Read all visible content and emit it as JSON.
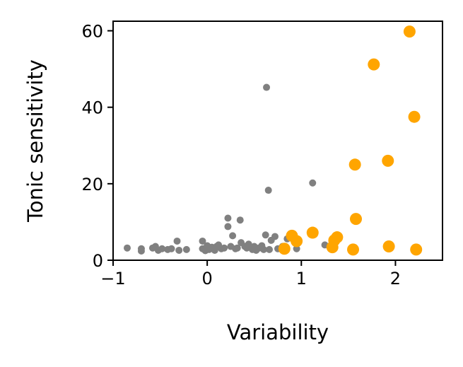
{
  "chart_data": {
    "type": "scatter",
    "xlabel": "Variability",
    "ylabel": "Tonic sensitivity",
    "xlim": [
      -1,
      2.5
    ],
    "ylim": [
      0,
      62.5
    ],
    "xticks": [
      -1,
      0,
      1,
      2
    ],
    "xtick_labels": [
      "−1",
      "0",
      "1",
      "2"
    ],
    "yticks": [
      0,
      20,
      40,
      60
    ],
    "ytick_labels": [
      "0",
      "20",
      "40",
      "60"
    ],
    "grid": false,
    "series": [
      {
        "color": "#808080",
        "marker_size": "small",
        "points": [
          [
            -0.85,
            3.2
          ],
          [
            -0.7,
            3.0
          ],
          [
            -0.7,
            2.4
          ],
          [
            -0.58,
            3.2
          ],
          [
            -0.55,
            3.6
          ],
          [
            -0.52,
            2.6
          ],
          [
            -0.48,
            3.0
          ],
          [
            -0.42,
            2.8
          ],
          [
            -0.38,
            3.0
          ],
          [
            -0.32,
            5.0
          ],
          [
            -0.3,
            2.6
          ],
          [
            -0.22,
            2.8
          ],
          [
            -0.05,
            5.0
          ],
          [
            -0.05,
            3.0
          ],
          [
            -0.02,
            2.5
          ],
          [
            0.0,
            3.8
          ],
          [
            0.02,
            2.8
          ],
          [
            0.05,
            3.4
          ],
          [
            0.08,
            2.6
          ],
          [
            0.1,
            3.6
          ],
          [
            0.12,
            4.0
          ],
          [
            0.15,
            3.0
          ],
          [
            0.18,
            3.2
          ],
          [
            0.22,
            11.0
          ],
          [
            0.22,
            8.8
          ],
          [
            0.25,
            3.6
          ],
          [
            0.27,
            6.4
          ],
          [
            0.3,
            3.0
          ],
          [
            0.32,
            3.2
          ],
          [
            0.35,
            10.5
          ],
          [
            0.36,
            4.6
          ],
          [
            0.4,
            3.6
          ],
          [
            0.42,
            3.2
          ],
          [
            0.44,
            4.2
          ],
          [
            0.48,
            2.8
          ],
          [
            0.5,
            3.6
          ],
          [
            0.52,
            2.6
          ],
          [
            0.55,
            3.2
          ],
          [
            0.58,
            3.8
          ],
          [
            0.6,
            2.8
          ],
          [
            0.62,
            6.6
          ],
          [
            0.63,
            45.2
          ],
          [
            0.65,
            18.3
          ],
          [
            0.66,
            2.8
          ],
          [
            0.68,
            5.2
          ],
          [
            0.72,
            6.2
          ],
          [
            0.75,
            3.0
          ],
          [
            0.8,
            3.6
          ],
          [
            0.85,
            5.6
          ],
          [
            0.95,
            3.0
          ],
          [
            1.12,
            20.2
          ],
          [
            1.25,
            4.0
          ]
        ]
      },
      {
        "color": "#ffa500",
        "marker_size": "large",
        "points": [
          [
            0.82,
            3.0
          ],
          [
            0.9,
            6.4
          ],
          [
            0.95,
            5.0
          ],
          [
            1.12,
            7.2
          ],
          [
            1.33,
            3.4
          ],
          [
            1.35,
            5.2
          ],
          [
            1.38,
            6.0
          ],
          [
            1.55,
            2.8
          ],
          [
            1.57,
            25.0
          ],
          [
            1.58,
            10.8
          ],
          [
            1.77,
            51.2
          ],
          [
            1.92,
            26.0
          ],
          [
            1.93,
            3.6
          ],
          [
            2.15,
            59.8
          ],
          [
            2.2,
            37.5
          ],
          [
            2.22,
            2.8
          ]
        ]
      }
    ]
  }
}
